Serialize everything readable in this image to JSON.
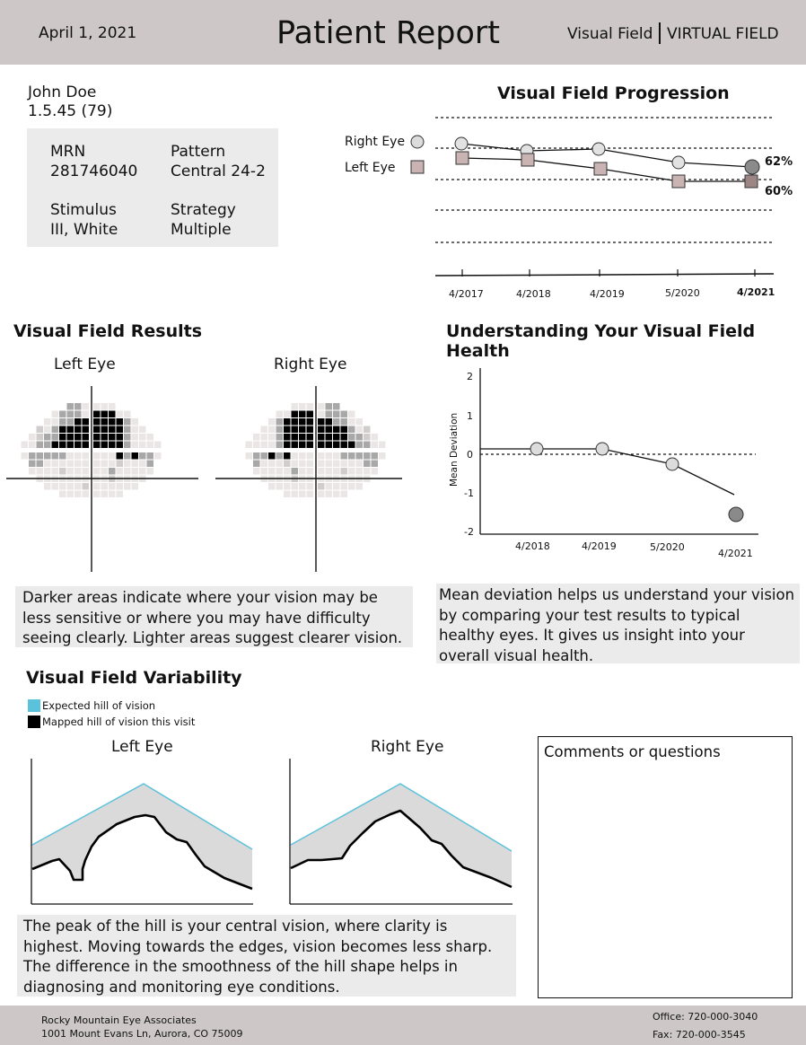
{
  "header": {
    "date": "April 1, 2021",
    "title": "Patient Report",
    "test_type": "Visual Field",
    "brand": "VIRTUAL FIELD"
  },
  "patient": {
    "name": "John Doe",
    "age_line": "1.5.45 (79)",
    "mrn_label": "MRN",
    "mrn": "281746040",
    "pattern_label": "Pattern",
    "pattern": "Central 24-2",
    "stimulus_label": "Stimulus",
    "stimulus": "III, White",
    "strategy_label": "Strategy",
    "strategy": "Multiple"
  },
  "progression": {
    "title": "Visual Field Progression",
    "legend": {
      "right": "Right Eye",
      "left": "Left Eye"
    },
    "dates": [
      "4/2017",
      "4/2018",
      "4/2019",
      "5/2020",
      "4/2021"
    ],
    "right_end_label": "62%",
    "left_end_label": "60%"
  },
  "results": {
    "title": "Visual Field Results",
    "left_eye": "Left Eye",
    "right_eye": "Right Eye",
    "description": "Darker areas indicate where your vision may be less sensitive or where you may have difficulty seeing clearly. Lighter areas suggest clearer vision."
  },
  "health": {
    "title": "Understanding Your Visual Field Health",
    "description": "Mean deviation helps us understand your vision by comparing your test results to typical healthy eyes. It gives us insight into your overall visual health."
  },
  "variability": {
    "title": "Visual Field Variability",
    "legend_expected": "Expected hill of vision",
    "legend_mapped": "Mapped hill of vision this visit",
    "left_eye": "Left Eye",
    "right_eye": "Right Eye",
    "description": "The peak of the hill is your central vision, where clarity is highest. Moving towards the edges, vision becomes less sharp. The difference in the smoothness of the hill shape helps in diagnosing and monitoring eye conditions.",
    "expected_color": "#5bc2dc",
    "mapped_color": "#000000"
  },
  "comments": {
    "label": "Comments or questions"
  },
  "footer": {
    "practice": "Rocky Mountain Eye Associates",
    "address": "1001 Mount Evans Ln, Aurora, CO 75009",
    "office": "Office: 720-000-3040",
    "fax": "Fax: 720-000-3545"
  },
  "chart_data": [
    {
      "type": "line",
      "title": "Visual Field Progression",
      "x": [
        "4/2017",
        "4/2018",
        "4/2019",
        "5/2020",
        "4/2021"
      ],
      "series": [
        {
          "name": "Right Eye",
          "values": [
            0.73,
            0.7,
            0.7,
            0.65,
            0.62
          ]
        },
        {
          "name": "Left Eye",
          "values": [
            0.71,
            0.69,
            0.66,
            0.6,
            0.6
          ]
        }
      ],
      "end_labels": [
        "62%",
        "60%"
      ],
      "grid": true,
      "legend": "left"
    },
    {
      "type": "line",
      "title": "Understanding Your Visual Field Health",
      "x": [
        "4/2018",
        "4/2019",
        "5/2020",
        "4/2021"
      ],
      "values": [
        0.1,
        0.1,
        -0.3,
        -1.6
      ],
      "ylabel": "Mean Deviation",
      "ylim": [
        -2,
        2
      ],
      "yticks": [
        2,
        1,
        0,
        -1,
        -2
      ],
      "reference_line": 0
    }
  ]
}
